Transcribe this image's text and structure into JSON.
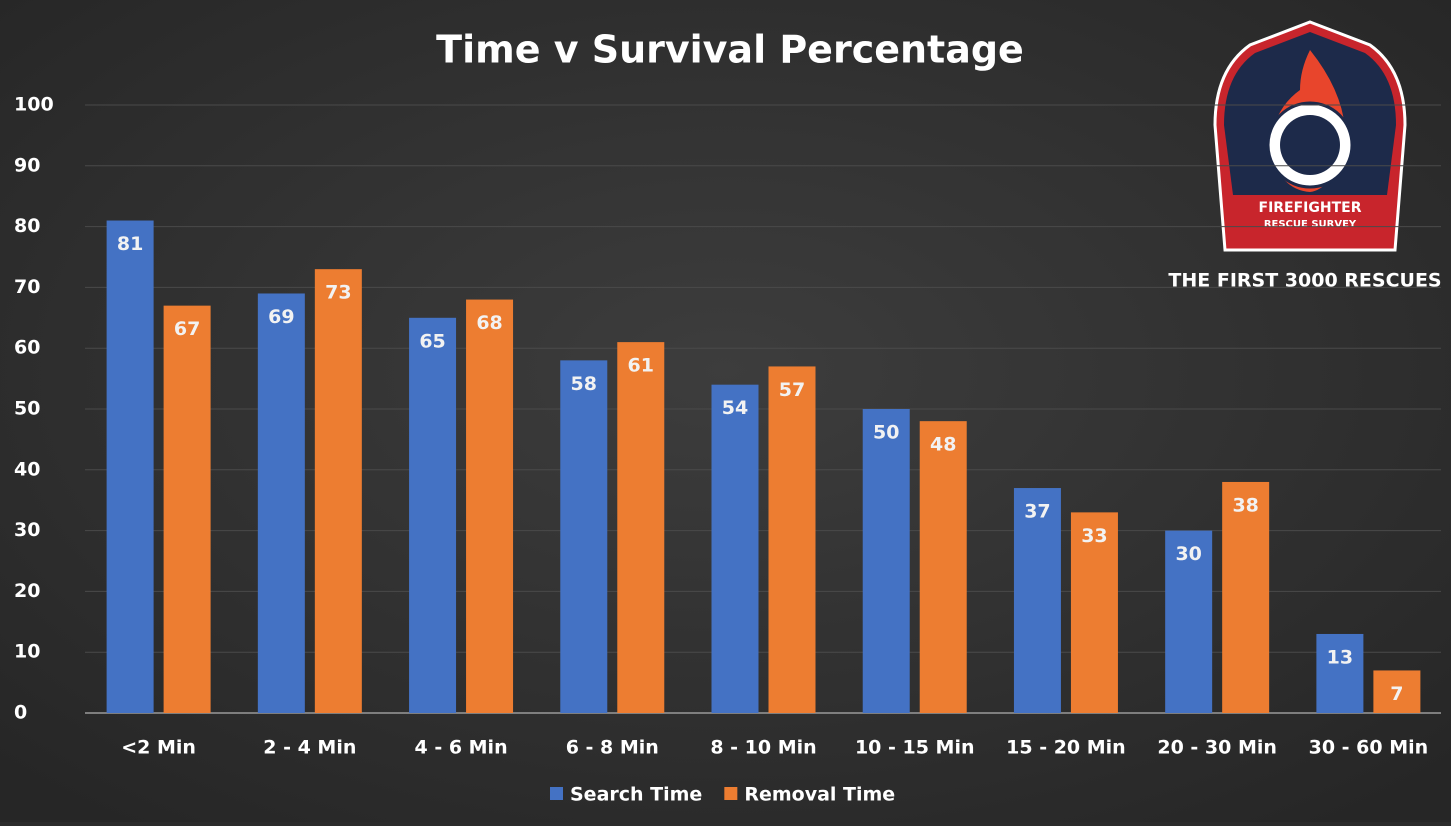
{
  "chart_data": {
    "type": "bar",
    "title": "Time v Survival Percentage",
    "categories": [
      "<2 Min",
      "2 - 4 Min",
      "4 - 6 Min",
      "6 - 8 Min",
      "8 - 10 Min",
      "10 - 15 Min",
      "15 - 20 Min",
      "20 - 30 Min",
      "30 - 60 Min"
    ],
    "series": [
      {
        "name": "Search Time",
        "color": "#4472c4",
        "values": [
          81,
          69,
          65,
          58,
          54,
          50,
          37,
          30,
          13
        ]
      },
      {
        "name": "Removal Time",
        "color": "#ed7d31",
        "values": [
          67,
          73,
          68,
          61,
          57,
          48,
          33,
          38,
          7
        ]
      }
    ],
    "ylim": [
      0,
      100
    ],
    "yticks": [
      0,
      10,
      20,
      30,
      40,
      50,
      60,
      70,
      80,
      90,
      100
    ],
    "grid": true,
    "legend": "bottom",
    "logo": {
      "title": "FIREFIGHTER",
      "subtitle": "RESCUE SURVEY",
      "caption": "THE FIRST 3000 RESCUES"
    }
  }
}
